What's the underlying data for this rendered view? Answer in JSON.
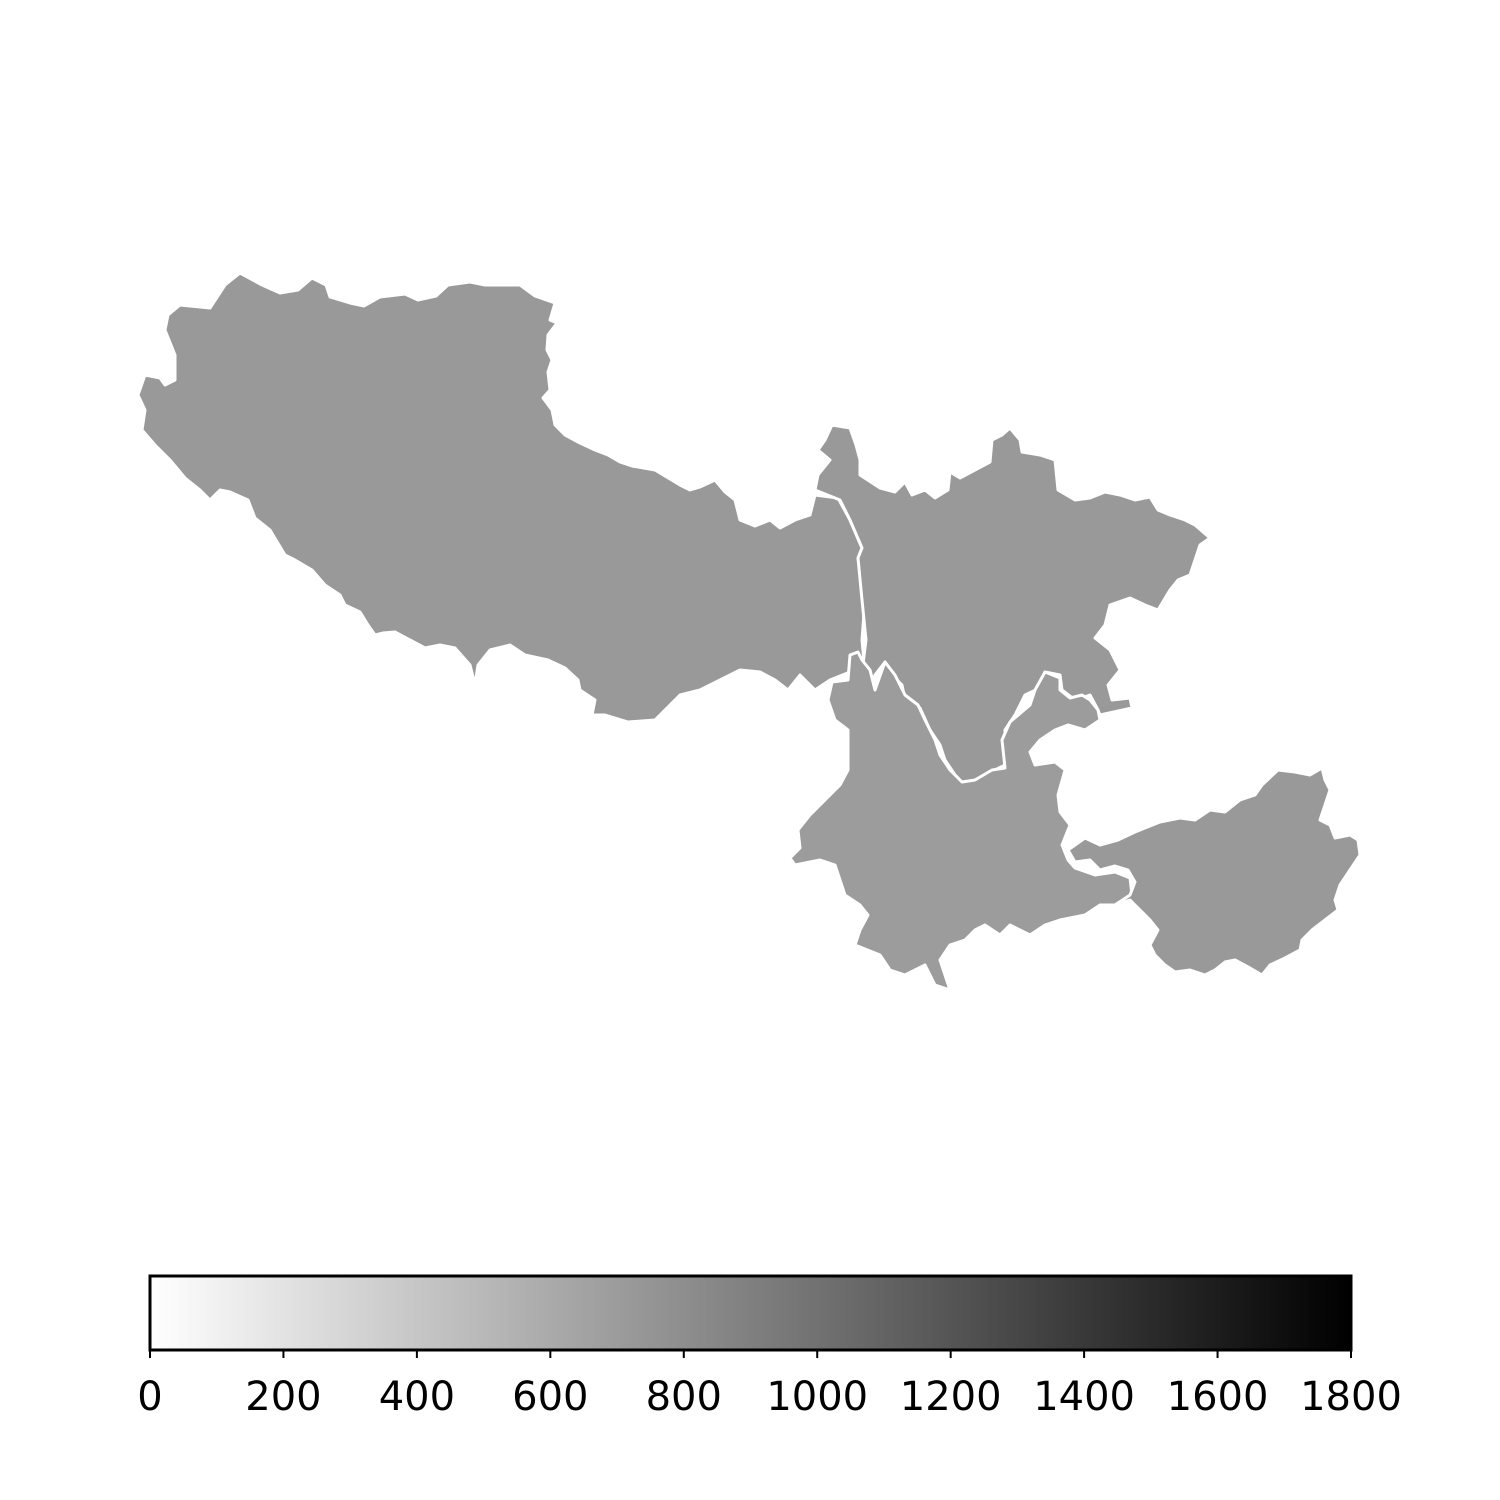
{
  "map": {
    "regions": [
      {
        "id": "region-west",
        "value": 700,
        "color": "#999999"
      },
      {
        "id": "region-northeast",
        "value": 700,
        "color": "#999999"
      },
      {
        "id": "region-south",
        "value": 670,
        "color": "#9c9c9c"
      },
      {
        "id": "region-east",
        "value": 700,
        "color": "#999999"
      }
    ]
  },
  "colorbar": {
    "min": 0,
    "max": 1800,
    "cmap_start": "#ffffff",
    "cmap_end": "#000000",
    "orientation": "horizontal",
    "ticks": [
      "0",
      "200",
      "400",
      "600",
      "800",
      "1000",
      "1200",
      "1400",
      "1600",
      "1800"
    ]
  }
}
